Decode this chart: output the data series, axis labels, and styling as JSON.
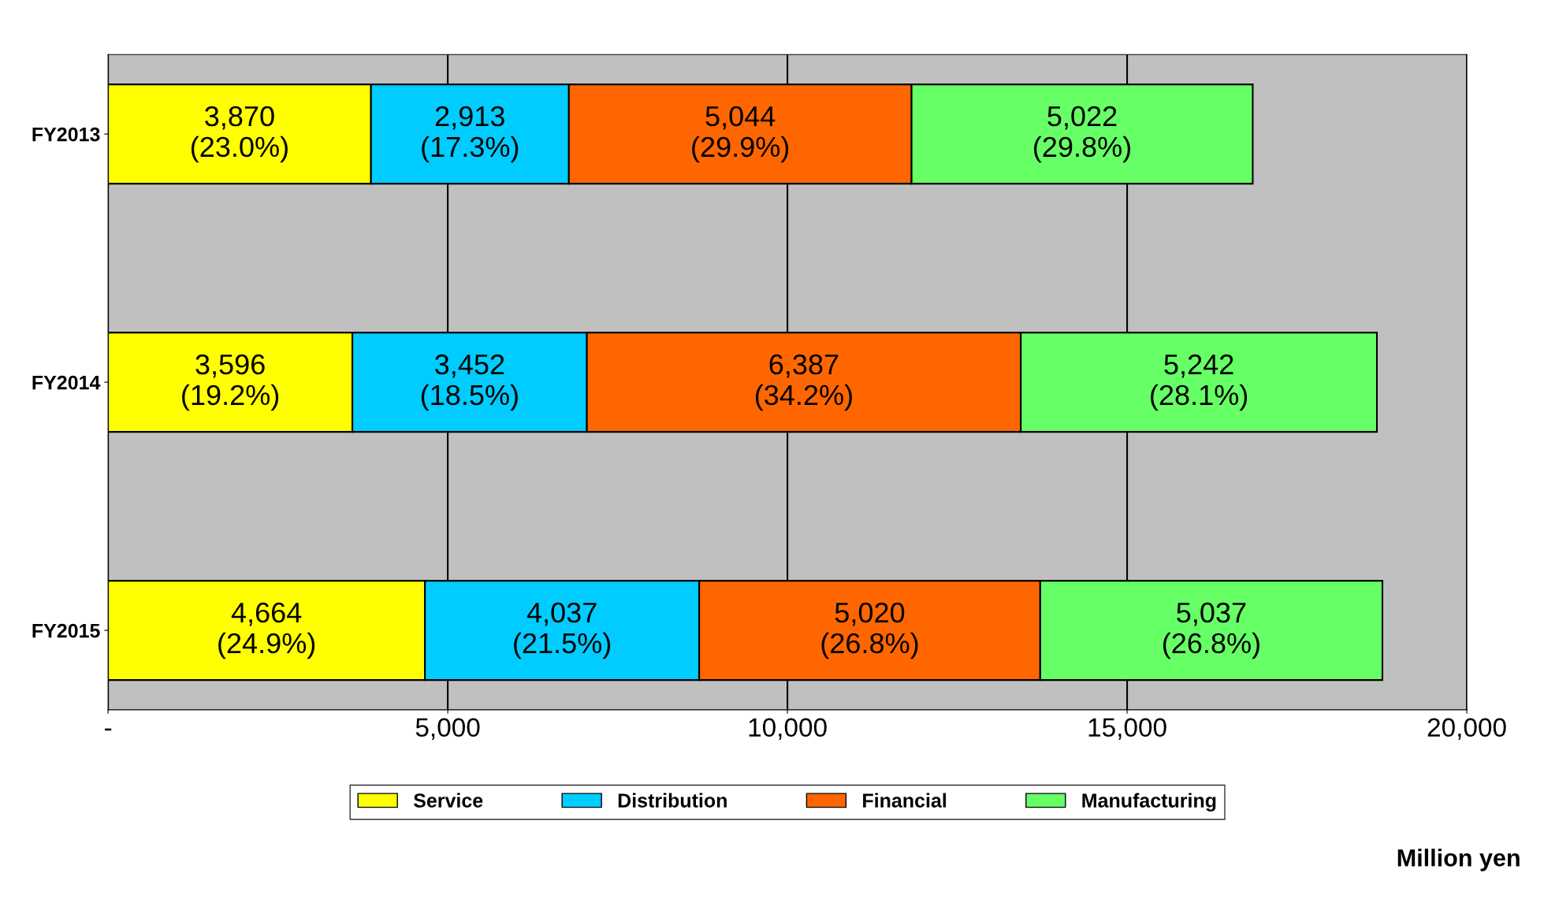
{
  "chart_data": {
    "type": "bar",
    "orientation": "horizontal",
    "stacked": true,
    "categories": [
      "FY2013",
      "FY2014",
      "FY2015"
    ],
    "series": [
      {
        "name": "Service",
        "color": "#ffff00",
        "values": [
          3870,
          3596,
          4664
        ],
        "value_labels": [
          "3,870\n(23.0%)",
          "3,596\n(19.2%)",
          "4,664\n(24.9%)"
        ]
      },
      {
        "name": "Distribution",
        "color": "#00ccff",
        "values": [
          2913,
          3452,
          4037
        ],
        "value_labels": [
          "2,913\n(17.3%)",
          "3,452\n(18.5%)",
          "4,037\n(21.5%)"
        ]
      },
      {
        "name": "Financial",
        "color": "#ff6600",
        "values": [
          5044,
          6387,
          5020
        ],
        "value_labels": [
          "5,044\n(29.9%)",
          "6,387\n(34.2%)",
          "5,020\n(26.8%)"
        ]
      },
      {
        "name": "Manufacturing",
        "color": "#66ff66",
        "values": [
          5022,
          5242,
          5037
        ],
        "value_labels": [
          "5,022\n(29.8%)",
          "5,242\n(28.1%)",
          "5,037\n(26.8%)"
        ]
      }
    ],
    "xlim": [
      0,
      20000
    ],
    "xticks": [
      {
        "value": 0,
        "label": "-"
      },
      {
        "value": 5000,
        "label": "5,000"
      },
      {
        "value": 10000,
        "label": "10,000"
      },
      {
        "value": 15000,
        "label": "15,000"
      },
      {
        "value": 20000,
        "label": "20,000"
      }
    ],
    "xlabel": "Million yen",
    "grid": "x",
    "legend": "bottom"
  }
}
